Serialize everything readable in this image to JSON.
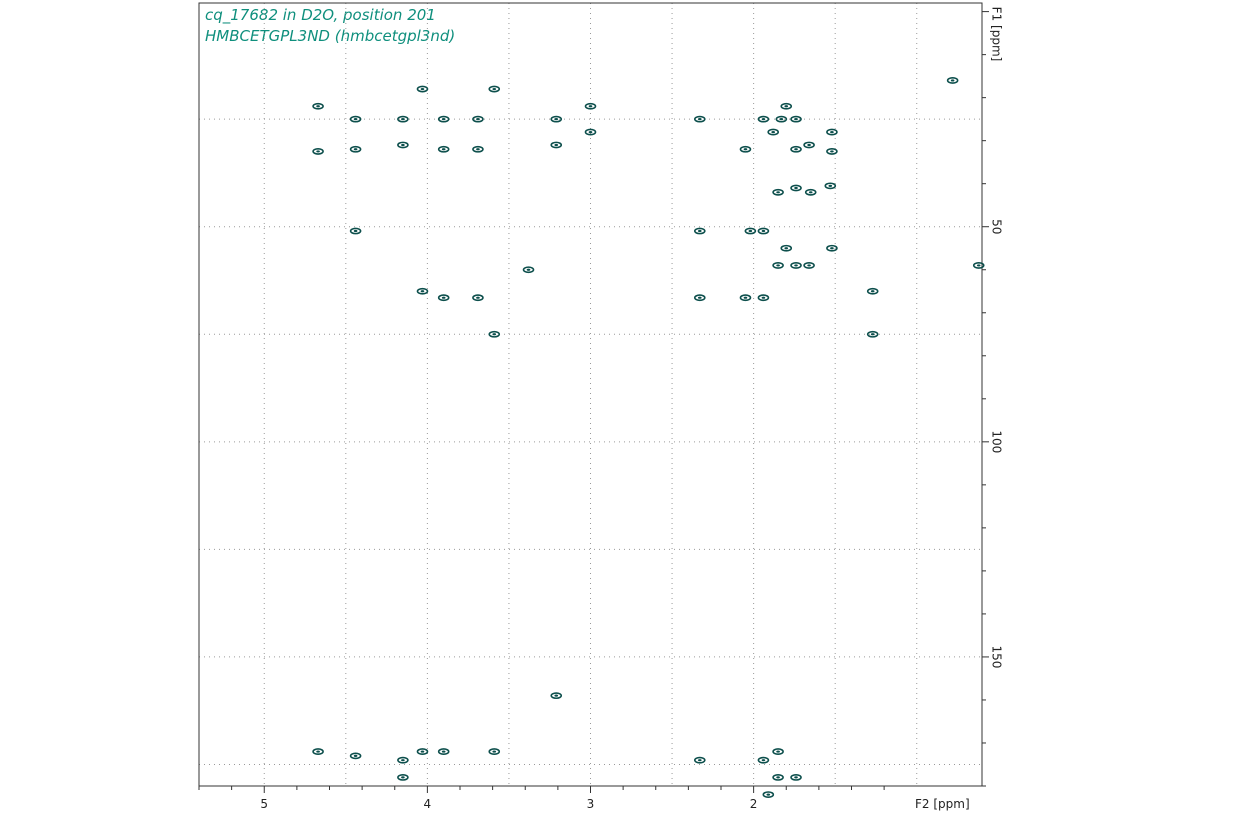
{
  "title": {
    "line1": "cq_17682 in D2O, position 201",
    "line2": "HMBCETGPL3ND (hmbcetgpl3nd)"
  },
  "colors": {
    "peak": "#0d4f4c",
    "title": "#0f8f7d",
    "grid": "#9a9a9a",
    "frame": "#333333"
  },
  "chart_data": {
    "type": "scatter",
    "title": "cq_17682 in D2O, position 201",
    "subtitle": "HMBCETGPL3ND (hmbcetgpl3nd)",
    "xlabel": "F2 [ppm]",
    "ylabel": "F1 [ppm]",
    "xlim": [
      5.4,
      0.6
    ],
    "ylim": [
      -2,
      180
    ],
    "x_reversed": true,
    "y_reversed": true,
    "x_ticks": [
      5,
      4,
      3,
      2
    ],
    "y_ticks": [
      50,
      100,
      150
    ],
    "grid": true,
    "series": [
      {
        "points": [
          {
            "x": 4.03,
            "y": 18
          },
          {
            "x": 3.59,
            "y": 18
          },
          {
            "x": 4.67,
            "y": 22
          },
          {
            "x": 3.0,
            "y": 22
          },
          {
            "x": 1.8,
            "y": 22
          },
          {
            "x": 4.44,
            "y": 25
          },
          {
            "x": 4.15,
            "y": 25
          },
          {
            "x": 3.9,
            "y": 25
          },
          {
            "x": 3.69,
            "y": 25
          },
          {
            "x": 3.21,
            "y": 25
          },
          {
            "x": 2.33,
            "y": 25
          },
          {
            "x": 1.94,
            "y": 25
          },
          {
            "x": 1.83,
            "y": 25
          },
          {
            "x": 1.74,
            "y": 25
          },
          {
            "x": 3.0,
            "y": 28
          },
          {
            "x": 1.52,
            "y": 28
          },
          {
            "x": 1.88,
            "y": 28
          },
          {
            "x": 3.21,
            "y": 31
          },
          {
            "x": 4.15,
            "y": 31
          },
          {
            "x": 4.44,
            "y": 32
          },
          {
            "x": 3.9,
            "y": 32
          },
          {
            "x": 3.69,
            "y": 32
          },
          {
            "x": 2.05,
            "y": 32
          },
          {
            "x": 1.66,
            "y": 31
          },
          {
            "x": 1.74,
            "y": 32
          },
          {
            "x": 4.67,
            "y": 32.5
          },
          {
            "x": 1.52,
            "y": 32.5
          },
          {
            "x": 1.74,
            "y": 41
          },
          {
            "x": 1.65,
            "y": 42
          },
          {
            "x": 1.85,
            "y": 42
          },
          {
            "x": 1.53,
            "y": 40.5
          },
          {
            "x": 2.33,
            "y": 51
          },
          {
            "x": 2.02,
            "y": 51
          },
          {
            "x": 1.94,
            "y": 51
          },
          {
            "x": 4.44,
            "y": 51
          },
          {
            "x": 1.8,
            "y": 55
          },
          {
            "x": 1.52,
            "y": 55
          },
          {
            "x": 1.85,
            "y": 59
          },
          {
            "x": 1.74,
            "y": 59
          },
          {
            "x": 1.66,
            "y": 59
          },
          {
            "x": 3.38,
            "y": 60
          },
          {
            "x": 4.03,
            "y": 65
          },
          {
            "x": 3.9,
            "y": 66.5
          },
          {
            "x": 3.69,
            "y": 66.5
          },
          {
            "x": 2.33,
            "y": 66.5
          },
          {
            "x": 2.05,
            "y": 66.5
          },
          {
            "x": 1.94,
            "y": 66.5
          },
          {
            "x": 1.27,
            "y": 65
          },
          {
            "x": 1.27,
            "y": 75
          },
          {
            "x": 3.59,
            "y": 75
          },
          {
            "x": 0.78,
            "y": 16
          },
          {
            "x": 0.62,
            "y": 59
          },
          {
            "x": 3.21,
            "y": 159
          },
          {
            "x": 4.67,
            "y": 172
          },
          {
            "x": 4.44,
            "y": 173
          },
          {
            "x": 4.03,
            "y": 172
          },
          {
            "x": 3.59,
            "y": 172
          },
          {
            "x": 4.15,
            "y": 174
          },
          {
            "x": 3.9,
            "y": 172
          },
          {
            "x": 2.33,
            "y": 174
          },
          {
            "x": 1.94,
            "y": 174
          },
          {
            "x": 1.85,
            "y": 172
          },
          {
            "x": 1.85,
            "y": 178
          },
          {
            "x": 1.74,
            "y": 178
          },
          {
            "x": 4.15,
            "y": 178
          },
          {
            "x": 1.91,
            "y": 182
          }
        ]
      }
    ]
  }
}
